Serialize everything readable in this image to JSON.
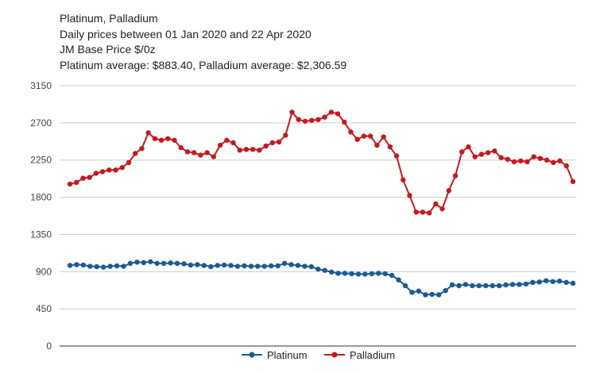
{
  "header": {
    "line1": "Platinum, Palladium",
    "line2": "Daily prices between 01 Jan 2020 and 22 Apr 2020",
    "line3": "JM Base Price $/0z",
    "line4": "Platinum average: $883.40, Palladium average: $2,306.59"
  },
  "chart_data": {
    "type": "line",
    "title": "Platinum, Palladium",
    "xlabel": "",
    "ylabel": "",
    "ylim": [
      0,
      3150
    ],
    "yticks": [
      0,
      450,
      900,
      1350,
      1800,
      2250,
      2700,
      3150
    ],
    "grid": true,
    "legend_position": "bottom",
    "series": [
      {
        "name": "Platinum",
        "color": "#1a5a96",
        "values": [
          975,
          985,
          980,
          965,
          960,
          955,
          965,
          970,
          965,
          1000,
          1015,
          1010,
          1020,
          1000,
          1000,
          1005,
          1000,
          995,
          980,
          985,
          975,
          960,
          975,
          980,
          975,
          965,
          970,
          965,
          965,
          965,
          970,
          970,
          1000,
          985,
          975,
          965,
          960,
          930,
          915,
          895,
          880,
          880,
          875,
          870,
          870,
          875,
          880,
          875,
          855,
          800,
          730,
          650,
          665,
          620,
          625,
          620,
          670,
          740,
          730,
          745,
          730,
          730,
          730,
          730,
          730,
          740,
          745,
          745,
          750,
          770,
          775,
          790,
          780,
          785,
          770,
          760
        ]
      },
      {
        "name": "Palladium",
        "color": "#c8181e",
        "values": [
          1960,
          1980,
          2030,
          2040,
          2090,
          2110,
          2130,
          2130,
          2160,
          2220,
          2330,
          2390,
          2580,
          2510,
          2490,
          2510,
          2490,
          2400,
          2350,
          2340,
          2310,
          2340,
          2290,
          2430,
          2490,
          2460,
          2370,
          2380,
          2380,
          2370,
          2420,
          2460,
          2470,
          2550,
          2830,
          2740,
          2720,
          2730,
          2740,
          2770,
          2830,
          2810,
          2710,
          2590,
          2500,
          2540,
          2540,
          2430,
          2530,
          2410,
          2300,
          2010,
          1820,
          1620,
          1620,
          1610,
          1720,
          1660,
          1880,
          2060,
          2350,
          2410,
          2290,
          2320,
          2340,
          2360,
          2280,
          2260,
          2230,
          2240,
          2230,
          2290,
          2270,
          2250,
          2220,
          2240,
          2180,
          1990
        ]
      }
    ]
  }
}
